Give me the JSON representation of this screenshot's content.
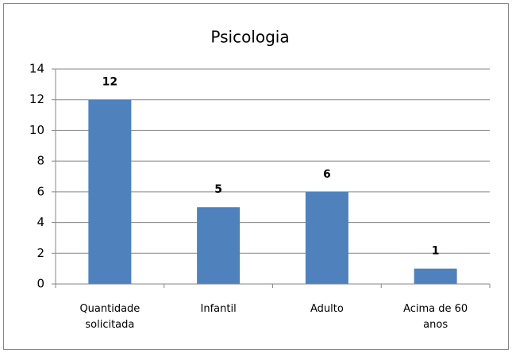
{
  "chart_data": {
    "type": "bar",
    "title": "Psicologia",
    "categories": [
      "Quantidade solicitada",
      "Infantil",
      "Adulto",
      "Acima de 60 anos"
    ],
    "values": [
      12,
      5,
      6,
      1
    ],
    "color": "#4f81bd",
    "ylim": [
      0,
      14
    ],
    "yticks": [
      0,
      2,
      4,
      6,
      8,
      10,
      12,
      14
    ],
    "grid": true
  }
}
